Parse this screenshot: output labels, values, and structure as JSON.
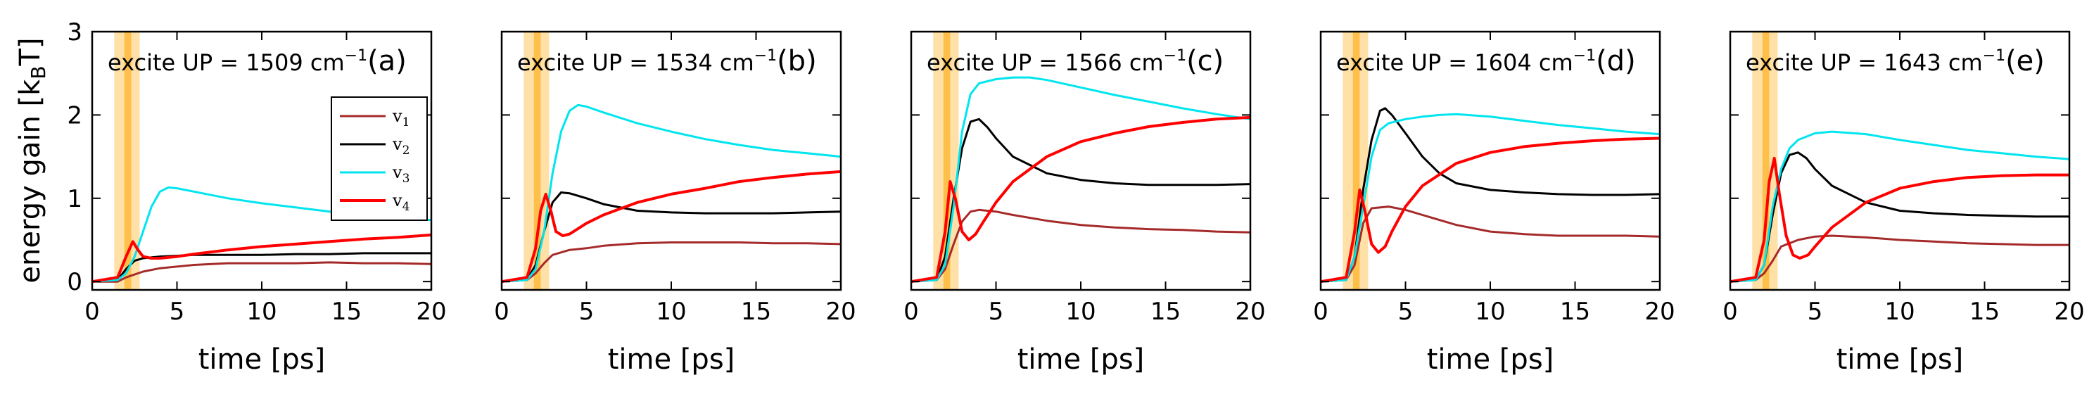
{
  "chart_data": {
    "type": "line",
    "ylabel": "energy gain [k",
    "ylabel_sub": "B",
    "ylabel_tail": "T]",
    "xlabel": "time [ps]",
    "xlim": [
      0,
      20
    ],
    "ylim": [
      -0.1,
      3
    ],
    "xticks": [
      "0",
      "5",
      "10",
      "15",
      "20"
    ],
    "yticks": [
      "0",
      "1",
      "2",
      "3"
    ],
    "legend": {
      "placement": "panel-a-center-right",
      "entries": [
        {
          "base": "v",
          "sub": "1",
          "color": "#a52a2a"
        },
        {
          "base": "v",
          "sub": "2",
          "color": "#000000"
        },
        {
          "base": "v",
          "sub": "3",
          "color": "#00e5ee"
        },
        {
          "base": "v",
          "sub": "4",
          "color": "#ff0000"
        }
      ]
    },
    "highlight_band": {
      "from": 1.3,
      "to": 2.8,
      "core_from": 1.9,
      "core_to": 2.3,
      "color": "#ffa500"
    },
    "panels": [
      {
        "title_prefix": "excite UP = 1509 cm",
        "title_sup": "−1",
        "letter": "(a)",
        "series": [
          {
            "x": [
              0,
              1.5,
              2,
              3,
              4,
              6,
              8,
              10,
              12,
              14,
              16,
              18,
              20
            ],
            "y": [
              0,
              0,
              0.05,
              0.12,
              0.16,
              0.2,
              0.22,
              0.22,
              0.22,
              0.23,
              0.22,
              0.22,
              0.21
            ]
          },
          {
            "x": [
              0,
              1.5,
              2,
              2.5,
              3,
              4,
              5,
              6,
              8,
              10,
              12,
              14,
              16,
              18,
              20
            ],
            "y": [
              0,
              0.02,
              0.15,
              0.25,
              0.28,
              0.3,
              0.31,
              0.32,
              0.32,
              0.32,
              0.33,
              0.33,
              0.34,
              0.34,
              0.34
            ]
          },
          {
            "x": [
              0,
              1.5,
              2,
              2.5,
              3,
              3.5,
              4,
              4.5,
              5,
              6,
              8,
              10,
              12,
              14,
              16,
              18,
              20
            ],
            "y": [
              0,
              0.02,
              0.1,
              0.3,
              0.6,
              0.9,
              1.08,
              1.13,
              1.12,
              1.08,
              1.0,
              0.94,
              0.89,
              0.84,
              0.79,
              0.75,
              0.74
            ]
          },
          {
            "x": [
              0,
              1.5,
              2,
              2.4,
              2.7,
              3,
              3.5,
              4,
              5,
              6,
              8,
              10,
              12,
              14,
              16,
              18,
              20
            ],
            "y": [
              0,
              0.05,
              0.3,
              0.48,
              0.38,
              0.3,
              0.28,
              0.28,
              0.3,
              0.33,
              0.38,
              0.42,
              0.45,
              0.48,
              0.51,
              0.53,
              0.56
            ]
          }
        ]
      },
      {
        "title_prefix": "excite UP = 1534 cm",
        "title_sup": "−1",
        "letter": "(b)",
        "series": [
          {
            "x": [
              0,
              1.5,
              2,
              2.5,
              3,
              4,
              5,
              6,
              8,
              10,
              12,
              14,
              16,
              18,
              20
            ],
            "y": [
              0,
              0.02,
              0.1,
              0.22,
              0.32,
              0.38,
              0.4,
              0.43,
              0.46,
              0.47,
              0.47,
              0.47,
              0.46,
              0.46,
              0.45
            ]
          },
          {
            "x": [
              0,
              1.5,
              2,
              2.5,
              3,
              3.5,
              4,
              5,
              6,
              8,
              10,
              12,
              14,
              16,
              18,
              20
            ],
            "y": [
              0,
              0.02,
              0.2,
              0.6,
              0.95,
              1.07,
              1.06,
              1.0,
              0.93,
              0.85,
              0.83,
              0.82,
              0.82,
              0.82,
              0.83,
              0.84
            ]
          },
          {
            "x": [
              0,
              1.5,
              2,
              2.5,
              3,
              3.5,
              4,
              4.5,
              5,
              6,
              8,
              10,
              12,
              14,
              16,
              18,
              20
            ],
            "y": [
              0,
              0.02,
              0.15,
              0.6,
              1.3,
              1.8,
              2.05,
              2.12,
              2.1,
              2.03,
              1.9,
              1.8,
              1.71,
              1.64,
              1.58,
              1.54,
              1.5
            ]
          },
          {
            "x": [
              0,
              1.5,
              2,
              2.3,
              2.6,
              2.9,
              3.2,
              3.6,
              4,
              5,
              6,
              8,
              10,
              12,
              14,
              16,
              18,
              20
            ],
            "y": [
              0,
              0.05,
              0.4,
              0.85,
              1.05,
              0.85,
              0.6,
              0.55,
              0.57,
              0.7,
              0.8,
              0.95,
              1.05,
              1.12,
              1.2,
              1.25,
              1.29,
              1.32
            ]
          }
        ]
      },
      {
        "title_prefix": "excite UP = 1566 cm",
        "title_sup": "−1",
        "letter": "(c)",
        "series": [
          {
            "x": [
              0,
              1.5,
              2,
              2.5,
              3,
              3.5,
              4,
              5,
              6,
              8,
              10,
              12,
              14,
              16,
              18,
              20
            ],
            "y": [
              0,
              0.02,
              0.15,
              0.45,
              0.72,
              0.84,
              0.86,
              0.84,
              0.8,
              0.73,
              0.68,
              0.65,
              0.63,
              0.62,
              0.6,
              0.59
            ]
          },
          {
            "x": [
              0,
              1.5,
              2,
              2.5,
              3,
              3.5,
              4,
              4.5,
              5,
              6,
              8,
              10,
              12,
              14,
              16,
              18,
              20
            ],
            "y": [
              0,
              0.02,
              0.3,
              1.0,
              1.6,
              1.92,
              1.95,
              1.85,
              1.72,
              1.5,
              1.3,
              1.22,
              1.18,
              1.16,
              1.16,
              1.16,
              1.17
            ]
          },
          {
            "x": [
              0,
              1.5,
              2,
              2.5,
              3,
              3.5,
              4,
              5,
              6,
              7,
              8,
              10,
              12,
              14,
              16,
              18,
              20
            ],
            "y": [
              0,
              0.02,
              0.2,
              0.9,
              1.8,
              2.25,
              2.38,
              2.43,
              2.45,
              2.45,
              2.42,
              2.33,
              2.24,
              2.16,
              2.08,
              2.01,
              1.95
            ]
          },
          {
            "x": [
              0,
              1.5,
              2,
              2.3,
              2.6,
              3,
              3.4,
              3.8,
              4.2,
              5,
              6,
              8,
              10,
              12,
              14,
              16,
              18,
              20
            ],
            "y": [
              0,
              0.05,
              0.6,
              1.2,
              1.0,
              0.6,
              0.5,
              0.57,
              0.7,
              0.95,
              1.2,
              1.5,
              1.68,
              1.78,
              1.86,
              1.91,
              1.95,
              1.97
            ]
          }
        ]
      },
      {
        "title_prefix": "excite UP = 1604 cm",
        "title_sup": "−1",
        "letter": "(d)",
        "series": [
          {
            "x": [
              0,
              1.5,
              2,
              2.5,
              3,
              4,
              5,
              6,
              8,
              10,
              12,
              14,
              16,
              18,
              20
            ],
            "y": [
              0,
              0.02,
              0.2,
              0.7,
              0.88,
              0.9,
              0.86,
              0.8,
              0.68,
              0.6,
              0.57,
              0.55,
              0.55,
              0.55,
              0.54
            ]
          },
          {
            "x": [
              0,
              1.5,
              2,
              2.5,
              3,
              3.5,
              3.8,
              4.2,
              5,
              6,
              7,
              8,
              10,
              12,
              14,
              16,
              18,
              20
            ],
            "y": [
              0,
              0.02,
              0.3,
              1.1,
              1.7,
              2.05,
              2.08,
              2.0,
              1.78,
              1.5,
              1.3,
              1.18,
              1.1,
              1.07,
              1.05,
              1.04,
              1.04,
              1.05
            ]
          },
          {
            "x": [
              0,
              1.5,
              2,
              2.5,
              3,
              3.5,
              4,
              5,
              6,
              7,
              8,
              10,
              12,
              14,
              16,
              18,
              20
            ],
            "y": [
              0,
              0.02,
              0.3,
              0.9,
              1.5,
              1.82,
              1.9,
              1.95,
              1.98,
              2.0,
              2.01,
              1.98,
              1.93,
              1.88,
              1.84,
              1.8,
              1.77
            ]
          },
          {
            "x": [
              0,
              1.5,
              2,
              2.3,
              2.6,
              3,
              3.4,
              3.8,
              4.2,
              5,
              6,
              8,
              10,
              12,
              14,
              16,
              18,
              20
            ],
            "y": [
              0,
              0.05,
              0.6,
              1.1,
              0.85,
              0.45,
              0.35,
              0.42,
              0.6,
              0.9,
              1.15,
              1.42,
              1.55,
              1.62,
              1.66,
              1.69,
              1.71,
              1.72
            ]
          }
        ]
      },
      {
        "title_prefix": "excite UP = 1643 cm",
        "title_sup": "−1",
        "letter": "(e)",
        "series": [
          {
            "x": [
              0,
              1.5,
              2,
              2.5,
              3,
              4,
              5,
              6,
              8,
              10,
              12,
              14,
              16,
              18,
              20
            ],
            "y": [
              0,
              0.02,
              0.1,
              0.25,
              0.42,
              0.5,
              0.54,
              0.55,
              0.53,
              0.5,
              0.48,
              0.46,
              0.45,
              0.44,
              0.44
            ]
          },
          {
            "x": [
              0,
              1.5,
              2,
              2.5,
              3,
              3.5,
              4,
              4.5,
              5,
              6,
              8,
              10,
              12,
              14,
              16,
              18,
              20
            ],
            "y": [
              0,
              0.02,
              0.2,
              0.8,
              1.3,
              1.52,
              1.55,
              1.48,
              1.35,
              1.15,
              0.95,
              0.85,
              0.82,
              0.8,
              0.79,
              0.78,
              0.78
            ]
          },
          {
            "x": [
              0,
              1.5,
              2,
              2.5,
              3,
              3.5,
              4,
              5,
              6,
              8,
              10,
              12,
              14,
              16,
              18,
              20
            ],
            "y": [
              0,
              0.02,
              0.2,
              0.9,
              1.35,
              1.6,
              1.7,
              1.78,
              1.8,
              1.77,
              1.7,
              1.64,
              1.58,
              1.54,
              1.5,
              1.47
            ]
          },
          {
            "x": [
              0,
              1.5,
              2,
              2.3,
              2.6,
              2.9,
              3.3,
              3.7,
              4.1,
              4.6,
              5,
              6,
              8,
              10,
              12,
              14,
              16,
              18,
              20
            ],
            "y": [
              0,
              0.05,
              0.5,
              1.2,
              1.48,
              1.05,
              0.55,
              0.32,
              0.28,
              0.32,
              0.42,
              0.65,
              0.95,
              1.12,
              1.2,
              1.25,
              1.27,
              1.28,
              1.28
            ]
          }
        ]
      }
    ]
  }
}
